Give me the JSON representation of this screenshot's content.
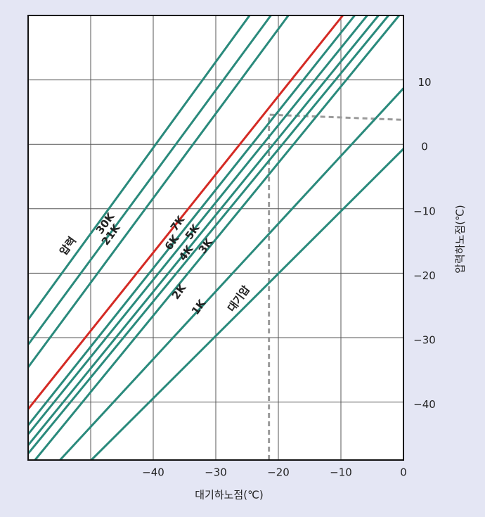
{
  "chart_data": {
    "type": "line",
    "x_label": "대기하노점(℃)",
    "y_label": "압력하노점(℃)",
    "pressure_label": "압력",
    "xlim": [
      -60,
      0
    ],
    "ylim": [
      -49,
      20
    ],
    "xticks": [
      {
        "value": -40,
        "label": "−40"
      },
      {
        "value": -30,
        "label": "−30"
      },
      {
        "value": -20,
        "label": "−20"
      },
      {
        "value": -10,
        "label": "−10"
      },
      0
    ],
    "x_grid": [
      -50,
      -40,
      -30,
      -20,
      -10
    ],
    "yticks": [
      10,
      0,
      {
        "value": -10,
        "label": "−10"
      },
      {
        "value": -20,
        "label": "−20"
      },
      {
        "value": -30,
        "label": "−30"
      },
      {
        "value": -40,
        "label": "−40"
      }
    ],
    "grid": true,
    "series": [
      {
        "color": "#2a8a7c",
        "x": [
          -60,
          -24.6
        ],
        "values": [
          -27.2,
          20
        ]
      },
      {
        "name": "30K",
        "color": "#2a8a7c",
        "x": [
          -60,
          -21.2
        ],
        "values": [
          -31.1,
          20
        ]
      },
      {
        "name": "21K",
        "color": "#2a8a7c",
        "x": [
          -60,
          -18.4
        ],
        "values": [
          -34.6,
          20
        ]
      },
      {
        "name": "7K",
        "color": "#d42a24",
        "x": [
          -60,
          -9.7
        ],
        "values": [
          -41.1,
          20
        ]
      },
      {
        "name": "6K",
        "color": "#2a8a7c",
        "x": [
          -60,
          -7.8
        ],
        "values": [
          -43.6,
          20
        ]
      },
      {
        "name": "5K",
        "color": "#2a8a7c",
        "x": [
          -60,
          -5.8
        ],
        "values": [
          -45.0,
          20
        ]
      },
      {
        "name": "4K",
        "color": "#2a8a7c",
        "x": [
          -60,
          -4.0
        ],
        "values": [
          -46.7,
          20
        ]
      },
      {
        "name": "3K",
        "color": "#2a8a7c",
        "x": [
          -60,
          -2.4
        ],
        "values": [
          -48.0,
          20
        ]
      },
      {
        "name": "2K",
        "color": "#2a8a7c",
        "x": [
          -58.9,
          -0.7
        ],
        "values": [
          -49,
          20
        ]
      },
      {
        "name": "1K",
        "color": "#2a8a7c",
        "x": [
          -54.9,
          0
        ],
        "values": [
          -49,
          8.7
        ]
      },
      {
        "name": "대기압",
        "color": "#2a8a7c",
        "x": [
          -49.9,
          0
        ],
        "values": [
          -49,
          -0.7
        ]
      }
    ],
    "guide": {
      "color": "#9a9a9a",
      "x": [
        -21.5,
        -21.5,
        0
      ],
      "values": [
        -49,
        4.6,
        3.8
      ]
    }
  }
}
